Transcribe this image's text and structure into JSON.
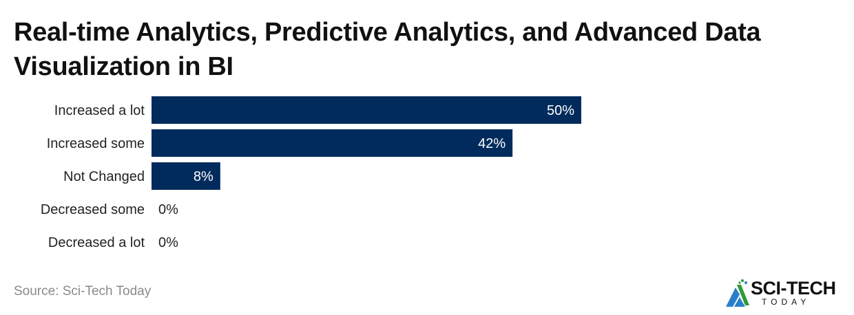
{
  "chart_data": {
    "type": "bar",
    "orientation": "horizontal",
    "title": "Real-time Analytics, Predictive Analytics, and Advanced Data Visualization in BI",
    "categories": [
      "Increased a lot",
      "Increased some",
      "Not Changed",
      "Decreased some",
      "Decreased a lot"
    ],
    "values": [
      50,
      42,
      8,
      0,
      0
    ],
    "labels": [
      "50%",
      "42%",
      "8%",
      "0%",
      "0%"
    ],
    "xlim": [
      0,
      50
    ],
    "grid": false,
    "bar_color": "#002b5c"
  },
  "source": "Source: Sci-Tech Today",
  "logo": {
    "main": "SCI-TECH",
    "sub": "TODAY"
  }
}
